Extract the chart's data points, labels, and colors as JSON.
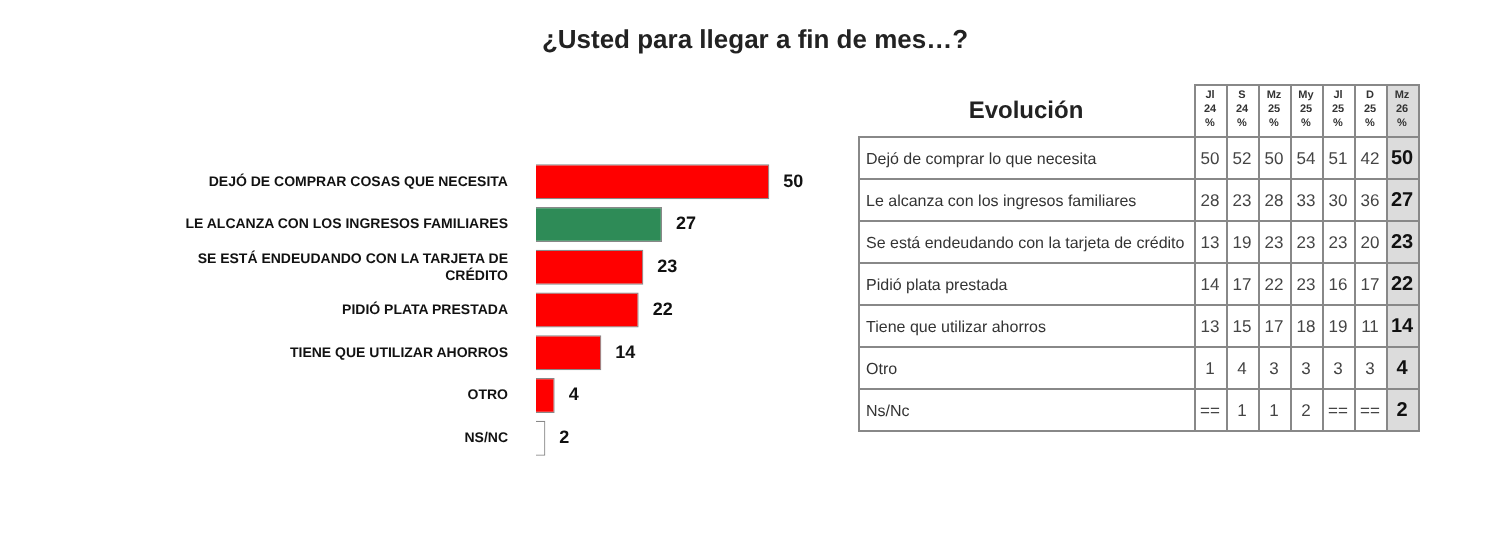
{
  "chart_data": [
    {
      "type": "bar",
      "orientation": "horizontal",
      "title": "¿Usted para llegar a fin de mes…?",
      "categories": [
        "DEJÓ DE COMPRAR COSAS QUE NECESITA",
        "LE ALCANZA CON LOS INGRESOS FAMILIARES",
        "SE ESTÁ ENDEUDANDO CON LA TARJETA DE CRÉDITO",
        "PIDIÓ PLATA PRESTADA",
        "TIENE QUE UTILIZAR AHORROS",
        "OTRO",
        "NS/NC"
      ],
      "values": [
        50,
        27,
        23,
        22,
        14,
        4,
        2
      ],
      "colors": [
        "#ff0000",
        "#2e8b57",
        "#ff0000",
        "#ff0000",
        "#ff0000",
        "#ff0000",
        "#ffffff"
      ],
      "data_labels": true
    },
    {
      "type": "other",
      "title": "Evolución",
      "categories": [
        "Jl 24 %",
        "S 24 %",
        "Mz 25 %",
        "My 25 %",
        "Jl 25 %",
        "D 25 %",
        "Mz 26 %"
      ],
      "y_categories": [
        "Dejó de comprar lo que necesita",
        "Le alcanza con los ingresos familiares",
        "Se está endeudando con la tarjeta de crédito",
        "Pidió plata prestada",
        "Tiene que utilizar ahorros",
        "Otro",
        "Ns/Nc"
      ],
      "cell_labels": [
        [
          "50",
          "52",
          "50",
          "54",
          "51",
          "42",
          "50"
        ],
        [
          "28",
          "23",
          "28",
          "33",
          "30",
          "36",
          "27"
        ],
        [
          "13",
          "19",
          "23",
          "23",
          "23",
          "20",
          "23"
        ],
        [
          "14",
          "17",
          "22",
          "23",
          "16",
          "17",
          "22"
        ],
        [
          "13",
          "15",
          "17",
          "18",
          "19",
          "11",
          "14"
        ],
        [
          "1",
          "4",
          "3",
          "3",
          "3",
          "3",
          "4"
        ],
        [
          "==",
          "1",
          "1",
          "2",
          "==",
          "==",
          "2"
        ]
      ]
    }
  ]
}
